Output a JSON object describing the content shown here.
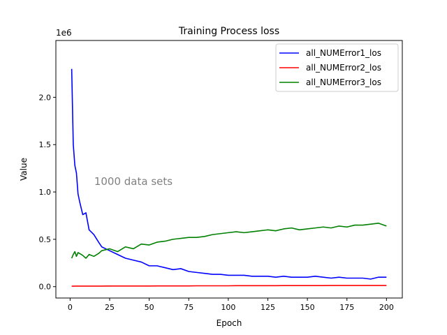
{
  "chart_data": {
    "type": "line",
    "title": "Training Process loss",
    "xlabel": "Epoch",
    "ylabel": "Value",
    "y_scale_label": "1e6",
    "annotation": "1000 data sets",
    "xlim": [
      -9,
      210
    ],
    "ylim": [
      -0.12,
      2.6
    ],
    "x_ticks": [
      0,
      25,
      50,
      75,
      100,
      125,
      150,
      175,
      200
    ],
    "y_ticks": [
      0.0,
      0.5,
      1.0,
      1.5,
      2.0
    ],
    "x_tick_labels": [
      "0",
      "25",
      "50",
      "75",
      "100",
      "125",
      "150",
      "175",
      "200"
    ],
    "y_tick_labels": [
      "0.0",
      "0.5",
      "1.0",
      "1.5",
      "2.0"
    ],
    "legend_position": "top-right",
    "grid": false,
    "x": [
      1,
      2,
      3,
      4,
      5,
      6,
      8,
      10,
      12,
      15,
      18,
      20,
      25,
      30,
      35,
      40,
      45,
      50,
      55,
      60,
      65,
      70,
      75,
      80,
      85,
      90,
      95,
      100,
      105,
      110,
      115,
      120,
      125,
      130,
      135,
      140,
      145,
      150,
      155,
      160,
      165,
      170,
      175,
      180,
      185,
      190,
      195,
      200
    ],
    "series": [
      {
        "name": "all_NUMError1_los",
        "color": "#0000ff",
        "values": [
          2.3,
          1.5,
          1.28,
          1.2,
          0.98,
          0.9,
          0.76,
          0.78,
          0.6,
          0.55,
          0.47,
          0.42,
          0.38,
          0.34,
          0.3,
          0.28,
          0.26,
          0.22,
          0.22,
          0.2,
          0.18,
          0.19,
          0.16,
          0.15,
          0.14,
          0.13,
          0.13,
          0.12,
          0.12,
          0.12,
          0.11,
          0.11,
          0.11,
          0.1,
          0.11,
          0.1,
          0.1,
          0.1,
          0.11,
          0.1,
          0.09,
          0.1,
          0.09,
          0.09,
          0.09,
          0.08,
          0.1,
          0.1
        ]
      },
      {
        "name": "all_NUMError2_los",
        "color": "#ff0000",
        "values": [
          0.005,
          0.005,
          0.006,
          0.006,
          0.006,
          0.006,
          0.006,
          0.006,
          0.006,
          0.006,
          0.006,
          0.006,
          0.007,
          0.007,
          0.007,
          0.007,
          0.007,
          0.007,
          0.008,
          0.008,
          0.008,
          0.008,
          0.008,
          0.009,
          0.009,
          0.009,
          0.009,
          0.009,
          0.01,
          0.01,
          0.01,
          0.01,
          0.01,
          0.01,
          0.011,
          0.011,
          0.011,
          0.011,
          0.011,
          0.011,
          0.012,
          0.012,
          0.012,
          0.012,
          0.012,
          0.012,
          0.012,
          0.012
        ]
      },
      {
        "name": "all_NUMError3_los",
        "color": "#008000",
        "values": [
          0.3,
          0.34,
          0.37,
          0.32,
          0.36,
          0.35,
          0.33,
          0.3,
          0.34,
          0.32,
          0.35,
          0.38,
          0.4,
          0.37,
          0.42,
          0.4,
          0.45,
          0.44,
          0.47,
          0.48,
          0.5,
          0.51,
          0.52,
          0.52,
          0.53,
          0.55,
          0.56,
          0.57,
          0.58,
          0.57,
          0.58,
          0.59,
          0.6,
          0.59,
          0.61,
          0.62,
          0.6,
          0.61,
          0.62,
          0.63,
          0.62,
          0.64,
          0.63,
          0.65,
          0.65,
          0.66,
          0.67,
          0.64
        ]
      }
    ]
  }
}
